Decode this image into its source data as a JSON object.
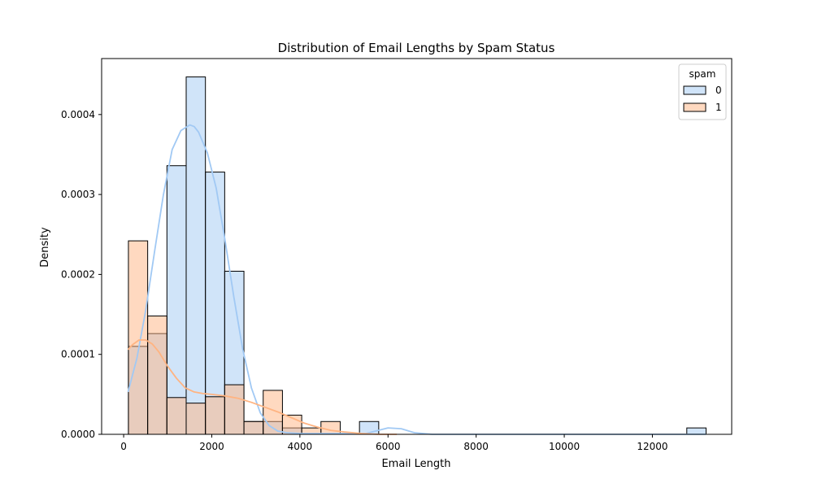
{
  "chart_data": {
    "type": "histogram",
    "title": "Distribution of Email Lengths by Spam Status",
    "xlabel": "Email Length",
    "ylabel": "Density",
    "xlim": [
      -500,
      13800
    ],
    "ylim": [
      0,
      0.00047
    ],
    "xticks": [
      0,
      2000,
      4000,
      6000,
      8000,
      10000,
      12000
    ],
    "xtick_labels": [
      "0",
      "2000",
      "4000",
      "6000",
      "8000",
      "10000",
      "12000"
    ],
    "yticks": [
      0,
      0.0001,
      0.0002,
      0.0003,
      0.0004
    ],
    "ytick_labels": [
      "0.0000",
      "0.0001",
      "0.0002",
      "0.0003",
      "0.0004"
    ],
    "grid": false,
    "legend": {
      "title": "spam",
      "placement": "top-right"
    },
    "bin_edges": [
      108,
      545,
      982,
      1419,
      1856,
      2293,
      2730,
      3167,
      3604,
      4041,
      4478,
      4915,
      5352,
      5789,
      6226,
      6663,
      7100,
      7537,
      7974,
      8411,
      8848,
      9285,
      9722,
      10159,
      10596,
      11033,
      11470,
      11907,
      12344,
      12781,
      13218
    ],
    "series": [
      {
        "name": "0",
        "color": "#a1c9f4",
        "edge_color": "#000000",
        "values": [
          0.00011,
          0.000126,
          0.000336,
          0.000447,
          0.000328,
          0.000204,
          1.6e-05,
          1.6e-05,
          8e-06,
          0,
          0,
          0,
          1.6e-05,
          0,
          0,
          0,
          0,
          0,
          0,
          0,
          0,
          0,
          0,
          0,
          0,
          0,
          0,
          0,
          0,
          8e-06
        ],
        "kde_x": [
          100,
          300,
          500,
          700,
          900,
          1100,
          1300,
          1500,
          1600,
          1700,
          1900,
          2100,
          2300,
          2500,
          2700,
          2900,
          3100,
          3300,
          3500,
          3700,
          4000,
          4500,
          5000,
          5500,
          6000,
          6300,
          6600,
          7000,
          8000,
          10000,
          12000,
          13218
        ],
        "kde_y": [
          5.3e-05,
          9.5e-05,
          0.000155,
          0.000228,
          0.000299,
          0.000356,
          0.00038,
          0.000387,
          0.000385,
          0.000378,
          0.000352,
          0.000308,
          0.000243,
          0.000172,
          0.000107,
          5.8e-05,
          2.7e-05,
          1.1e-05,
          4e-06,
          2e-06,
          1e-06,
          1e-06,
          1e-06,
          1e-06,
          8e-06,
          7e-06,
          2e-06,
          0,
          0,
          0,
          0,
          0
        ]
      },
      {
        "name": "1",
        "color": "#ffb482",
        "edge_color": "#000000",
        "values": [
          0.000242,
          0.000148,
          4.6e-05,
          3.9e-05,
          4.7e-05,
          6.2e-05,
          1.6e-05,
          5.5e-05,
          2.4e-05,
          8e-06,
          1.6e-05
        ],
        "kde_x": [
          100,
          200,
          350,
          500,
          650,
          800,
          1000,
          1200,
          1400,
          1600,
          1800,
          2000,
          2300,
          2600,
          2900,
          3200,
          3500,
          3800,
          4100,
          4400,
          4700,
          5000,
          5400,
          5800,
          6200
        ],
        "kde_y": [
          0.000106,
          0.000112,
          0.000118,
          0.000118,
          0.000113,
          0.000103,
          8.5e-05,
          7e-05,
          5.8e-05,
          5.3e-05,
          5.1e-05,
          5e-05,
          4.8e-05,
          4.5e-05,
          4e-05,
          3.4e-05,
          2.8e-05,
          2.1e-05,
          1.4e-05,
          9e-06,
          5e-06,
          3e-06,
          1e-06,
          0,
          0
        ]
      }
    ]
  }
}
